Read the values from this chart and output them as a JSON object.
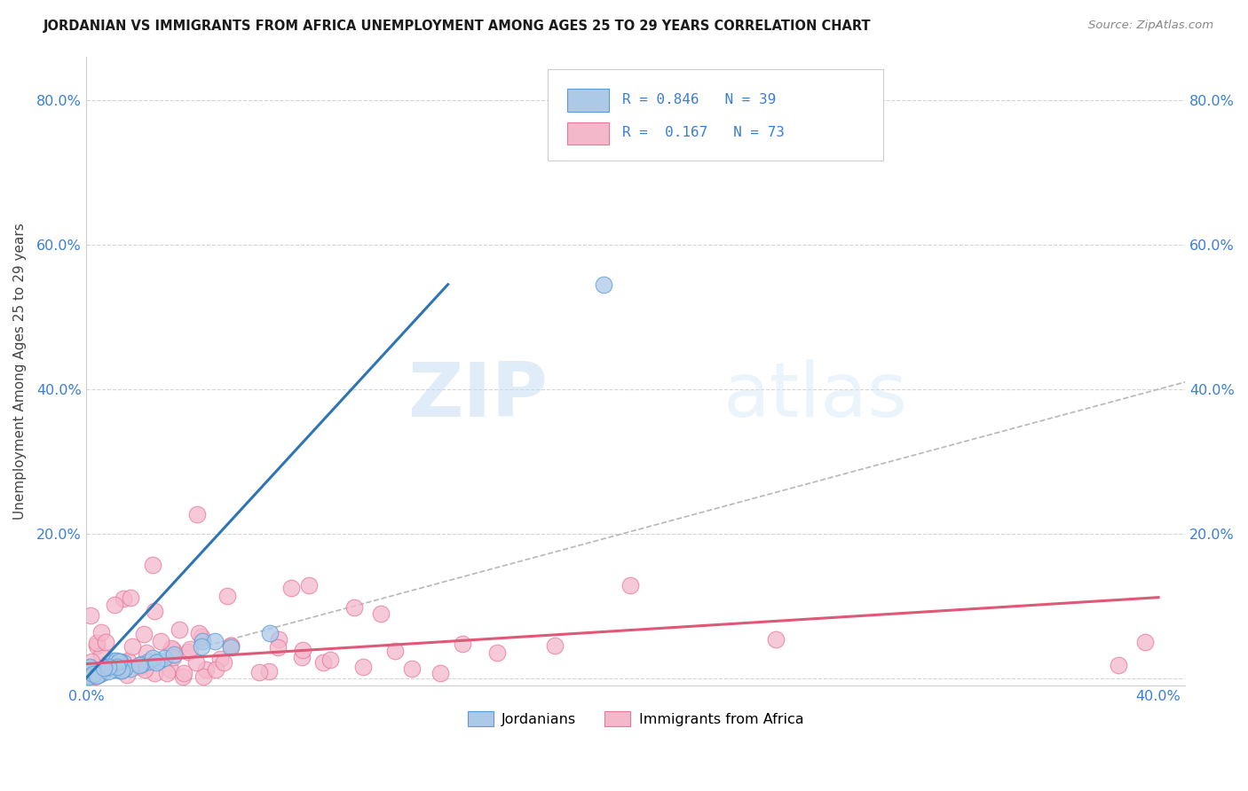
{
  "title": "JORDANIAN VS IMMIGRANTS FROM AFRICA UNEMPLOYMENT AMONG AGES 25 TO 29 YEARS CORRELATION CHART",
  "source": "Source: ZipAtlas.com",
  "ylabel": "Unemployment Among Ages 25 to 29 years",
  "xlim": [
    0.0,
    0.41
  ],
  "ylim": [
    -0.01,
    0.86
  ],
  "x_ticks": [
    0.0,
    0.1,
    0.2,
    0.3,
    0.4
  ],
  "y_ticks": [
    0.0,
    0.2,
    0.4,
    0.6,
    0.8
  ],
  "x_tick_labels": [
    "0.0%",
    "",
    "",
    "",
    "40.0%"
  ],
  "y_tick_labels_left": [
    "",
    "20.0%",
    "40.0%",
    "60.0%",
    "80.0%"
  ],
  "y_tick_labels_right": [
    "",
    "20.0%",
    "40.0%",
    "60.0%",
    "80.0%"
  ],
  "jordanian_R": 0.846,
  "jordanian_N": 39,
  "africa_R": 0.167,
  "africa_N": 73,
  "jordanian_color": "#adc9e8",
  "jordanian_edge_color": "#5b9bd5",
  "jordanian_line_color": "#2e75b6",
  "africa_color": "#f4b8cb",
  "africa_edge_color": "#e8789a",
  "africa_line_color": "#e05878",
  "diagonal_color": "#b0b0b0",
  "legend_label_jordanian": "Jordanians",
  "legend_label_africa": "Immigrants from Africa",
  "watermark_zip": "ZIP",
  "watermark_atlas": "atlas",
  "legend_R1": "R = 0.846",
  "legend_N1": "N = 39",
  "legend_R2": "R =  0.167",
  "legend_N2": "N = 73"
}
